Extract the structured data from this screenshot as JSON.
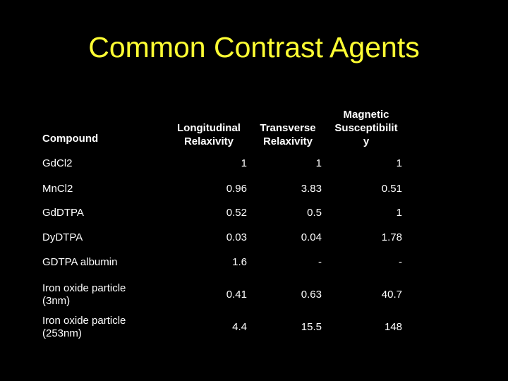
{
  "title": "Common Contrast Agents",
  "table": {
    "headers": [
      "Compound",
      "Longitudinal Relaxivity",
      "Transverse Relaxivity",
      "Magnetic Susceptibility"
    ],
    "rows": [
      [
        "GdCl2",
        "1",
        "1",
        "1"
      ],
      [
        "MnCl2",
        "0.96",
        "3.83",
        "0.51"
      ],
      [
        "GdDTPA",
        "0.52",
        "0.5",
        "1"
      ],
      [
        "DyDTPA",
        "0.03",
        "0.04",
        "1.78"
      ],
      [
        "GDTPA albumin",
        "1.6",
        "-",
        "-"
      ],
      [
        "Iron oxide particle (3nm)",
        "0.41",
        "0.63",
        "40.7"
      ],
      [
        "Iron oxide particle (253nm)",
        "4.4",
        "15.5",
        "148"
      ]
    ]
  }
}
